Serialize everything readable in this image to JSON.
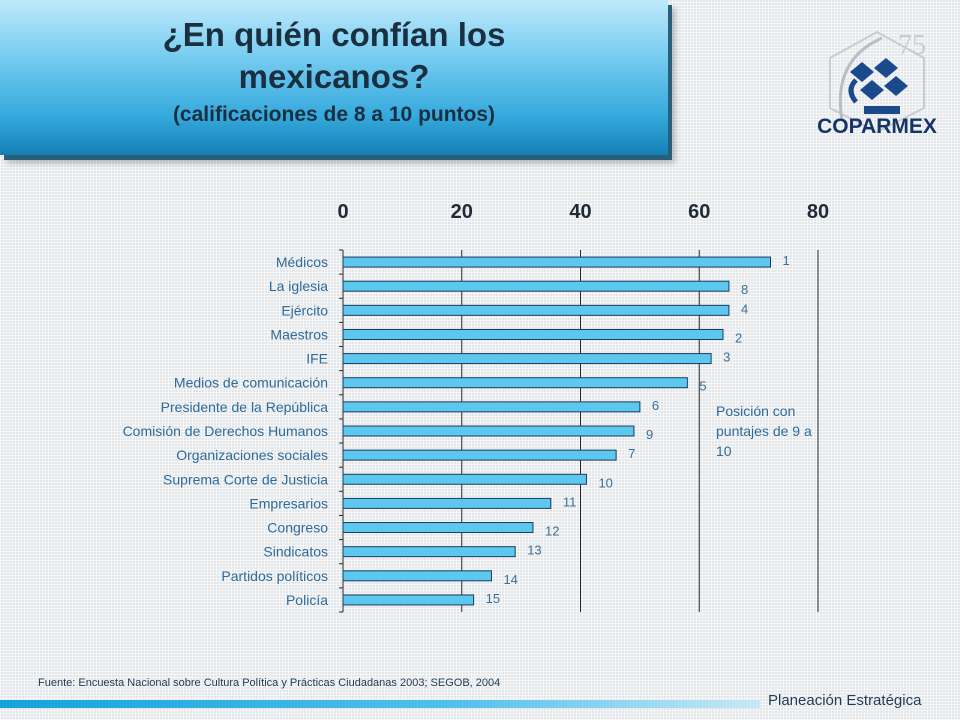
{
  "title": {
    "line1": "¿En quién confían los",
    "line2": "mexicanos?",
    "subtitle": "(calificaciones de 8 a 10 puntos)"
  },
  "logo": {
    "text": "COPARMEX",
    "accent": "#1a4a8c",
    "mark_text": "75"
  },
  "chart_data": {
    "type": "bar",
    "orientation": "horizontal",
    "categories": [
      "Médicos",
      "La iglesia",
      "Ejército",
      "Maestros",
      "IFE",
      "Medios de comunicación",
      "Presidente de la República",
      "Comisión de Derechos Humanos",
      "Organizaciones sociales",
      "Suprema Corte de Justicia",
      "Empresarios",
      "Congreso",
      "Sindicatos",
      "Partidos políticos",
      "Policía"
    ],
    "values": [
      72,
      65,
      65,
      64,
      62,
      58,
      50,
      49,
      46,
      41,
      35,
      32,
      29,
      25,
      22
    ],
    "bar_labels": [
      "1",
      "8",
      "4",
      "2",
      "3",
      "5",
      "6",
      "9",
      "7",
      "10",
      "11",
      "12",
      "13",
      "14",
      "15"
    ],
    "xlim": [
      0,
      80
    ],
    "xticks": [
      "0",
      "20",
      "40",
      "60",
      "80"
    ],
    "xaxis_position": "top",
    "grid": "vertical",
    "bar_color": "#5cc8f0",
    "bar_border": "#1b3a5a"
  },
  "note": "Posición con puntajes de 9 a 10",
  "source": "Fuente: Encuesta Nacional sobre Cultura Política y Prácticas Ciudadanas 2003; SEGOB, 2004",
  "footer": "Planeación Estratégica"
}
